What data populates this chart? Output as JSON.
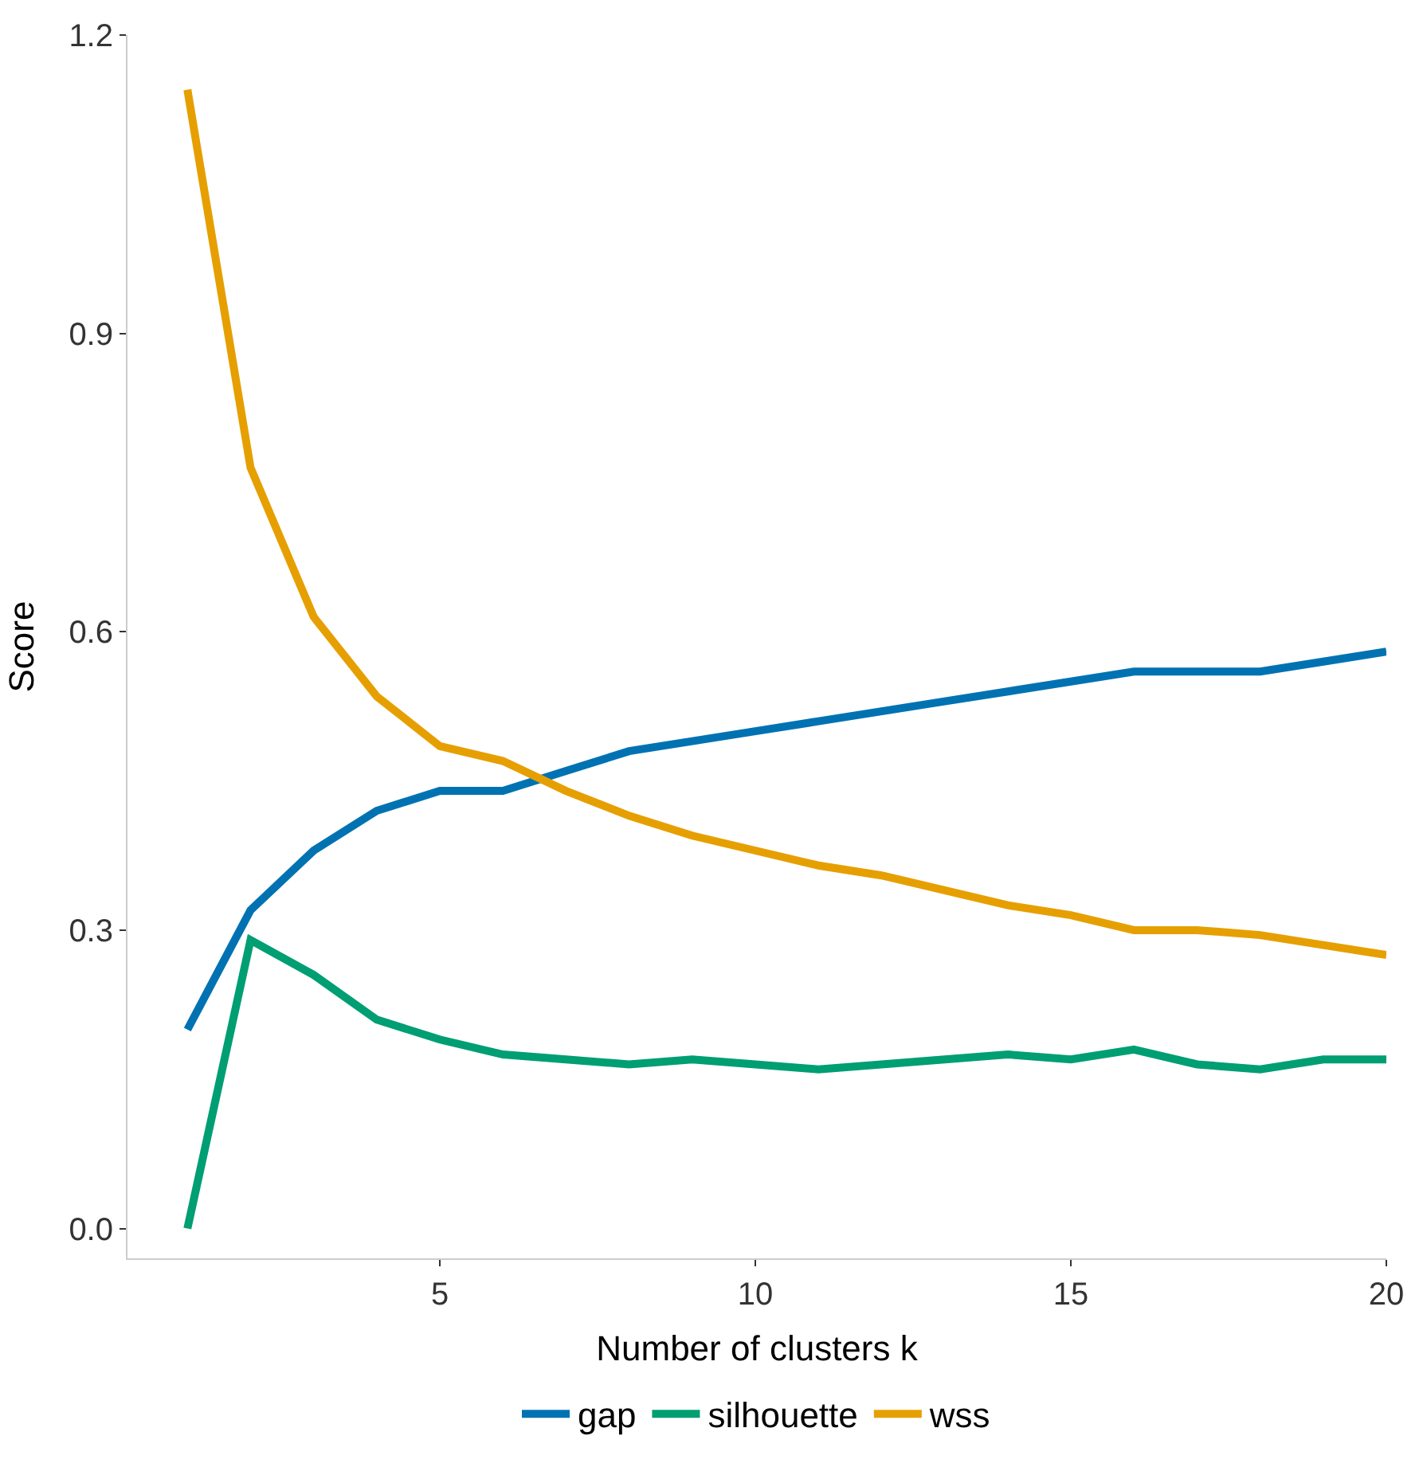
{
  "chart_data": {
    "type": "line",
    "xlabel": "Number of clusters k",
    "ylabel": "Score",
    "x": [
      1,
      2,
      3,
      4,
      5,
      6,
      7,
      8,
      9,
      10,
      11,
      12,
      13,
      14,
      15,
      16,
      17,
      18,
      19,
      20
    ],
    "series": [
      {
        "name": "gap",
        "color": "#0072b2",
        "values": [
          0.2,
          0.32,
          0.38,
          0.42,
          0.44,
          0.44,
          0.46,
          0.48,
          0.49,
          0.5,
          0.51,
          0.52,
          0.53,
          0.54,
          0.55,
          0.56,
          0.56,
          0.56,
          0.57,
          0.58
        ]
      },
      {
        "name": "silhouette",
        "color": "#009e73",
        "values": [
          0.0,
          0.29,
          0.255,
          0.21,
          0.19,
          0.175,
          0.17,
          0.165,
          0.17,
          0.165,
          0.16,
          0.165,
          0.17,
          0.175,
          0.17,
          0.18,
          0.165,
          0.16,
          0.17,
          0.17
        ]
      },
      {
        "name": "wss",
        "color": "#e69f00",
        "values": [
          1.145,
          0.765,
          0.615,
          0.535,
          0.485,
          0.47,
          0.44,
          0.415,
          0.395,
          0.38,
          0.365,
          0.355,
          0.34,
          0.325,
          0.315,
          0.3,
          0.3,
          0.295,
          0.285,
          0.275
        ]
      }
    ],
    "xticks": [
      5,
      10,
      15,
      20
    ],
    "yticks": [
      {
        "value": 0,
        "label": "0.0"
      },
      {
        "value": 0.3,
        "label": "0.3"
      },
      {
        "value": 0.6,
        "label": "0.6"
      },
      {
        "value": 0.9,
        "label": "0.9"
      },
      {
        "value": 1.2,
        "label": "1.2"
      }
    ],
    "xlim": [
      0.05,
      20
    ],
    "ylim": [
      -0.03,
      1.2
    ],
    "legend": "bottom",
    "marker": "none",
    "line_style": "solid"
  }
}
